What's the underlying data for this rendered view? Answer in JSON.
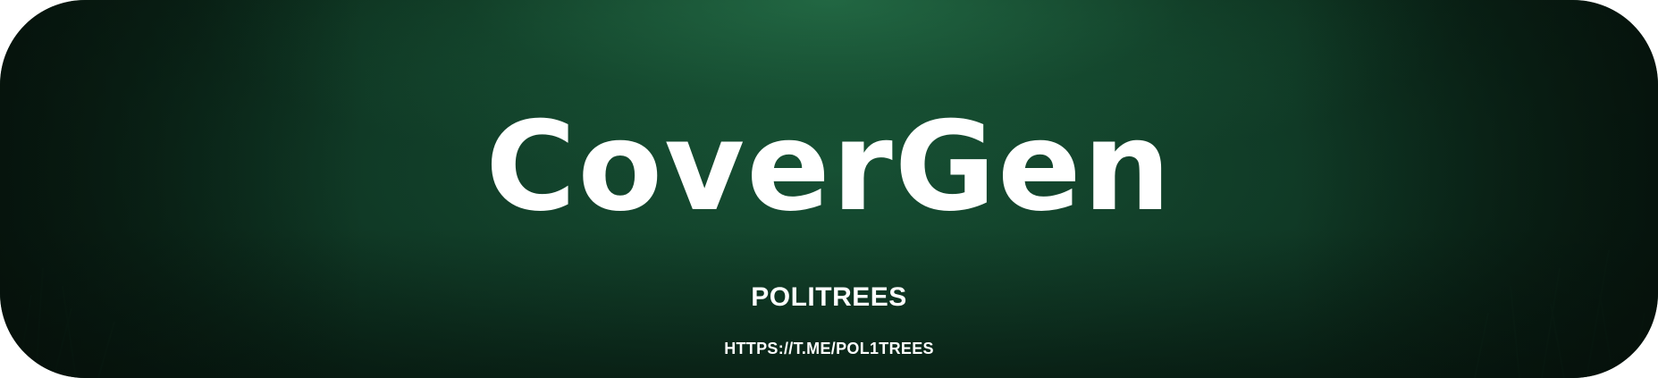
{
  "banner": {
    "title": "CoverGen",
    "subtitle": "POLITREES",
    "link": "HTTPS://T.ME/POL1TREES",
    "colors": {
      "background_center": "#164f33",
      "background_edge": "#071a11",
      "text": "#ffffff"
    }
  }
}
